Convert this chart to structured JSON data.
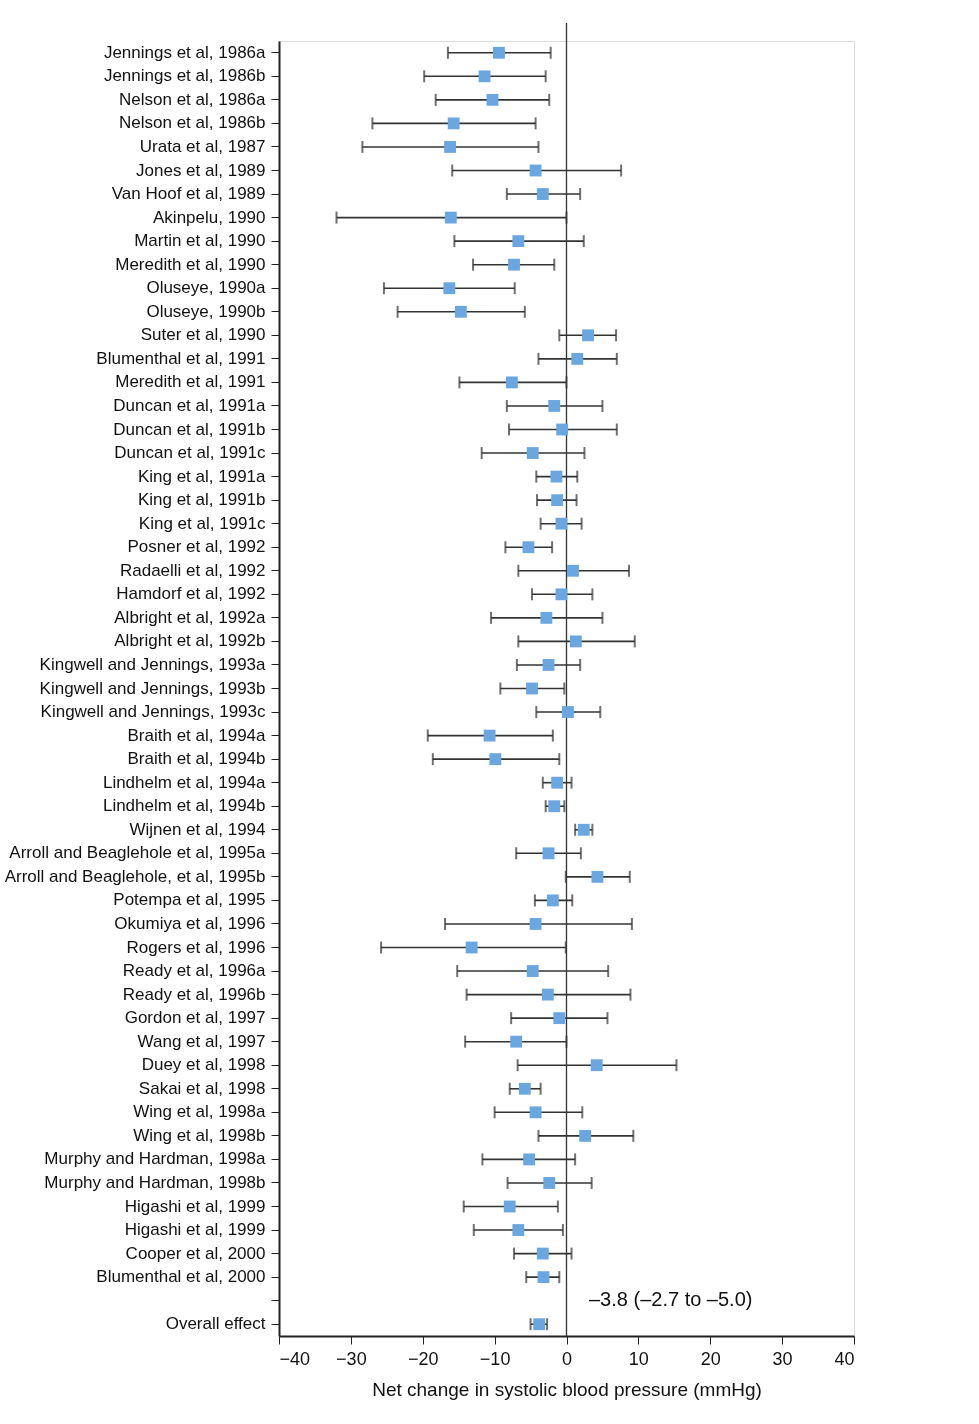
{
  "chart_data": {
    "type": "scatter",
    "orientation": "horizontal",
    "marker": "square",
    "xlabel": "Net change in systolic blood pressure (mmHg)",
    "categories": [
      "Jennings et al, 1986a",
      "Jennings et al, 1986b",
      "Nelson et al, 1986a",
      "Nelson et al, 1986b",
      "Urata et al, 1987",
      "Jones et al, 1989",
      "Van Hoof et al, 1989",
      "Akinpelu, 1990",
      "Martin et al, 1990",
      "Meredith et al, 1990",
      "Oluseye, 1990a",
      "Oluseye, 1990b",
      "Suter et al, 1990",
      "Blumenthal et al, 1991",
      "Meredith et al, 1991",
      "Duncan et al, 1991a",
      "Duncan et al, 1991b",
      "Duncan et al, 1991c",
      "King et al, 1991a",
      "King et al, 1991b",
      "King et al, 1991c",
      "Posner et al, 1992",
      "Radaelli et al, 1992",
      "Hamdorf et al, 1992",
      "Albright et al, 1992a",
      "Albright et al, 1992b",
      "Kingwell and Jennings, 1993a",
      "Kingwell and Jennings, 1993b",
      "Kingwell and Jennings, 1993c",
      "Braith et al, 1994a",
      "Braith et al, 1994b",
      "Lindhelm et al, 1994a",
      "Lindhelm et al, 1994b",
      "Wijnen et al, 1994",
      "Arroll and Beaglehole et al, 1995a",
      "Arroll and Beaglehole, et al, 1995b",
      "Potempa et al, 1995",
      "Okumiya et al, 1996",
      "Rogers et al, 1996",
      "Ready et al, 1996a",
      "Ready et al, 1996b",
      "Gordon et al, 1997",
      "Wang et al, 1997",
      "Duey et al, 1998",
      "Sakai et al, 1998",
      "Wing et al, 1998a",
      "Wing et al, 1998b",
      "Murphy and Hardman, 1998a",
      "Murphy and Hardman, 1998b",
      "Higashi et al, 1999",
      "Higashi et al, 1999",
      "Cooper et al, 2000",
      "Blumenthal et al, 2000",
      null,
      "Overall effect"
    ],
    "values": [
      -9.4,
      -11.4,
      -10.3,
      -15.7,
      -16.2,
      -4.3,
      -3.3,
      -16.1,
      -6.7,
      -7.3,
      -16.3,
      -14.7,
      3.0,
      1.5,
      -7.6,
      -1.7,
      -0.6,
      -4.7,
      -1.4,
      -1.3,
      -0.7,
      -5.3,
      0.9,
      -0.7,
      -2.8,
      1.3,
      -2.5,
      -4.8,
      0.2,
      -10.7,
      -9.9,
      -1.3,
      -1.7,
      2.4,
      -2.5,
      4.3,
      -1.9,
      -4.3,
      -13.2,
      -4.7,
      -2.6,
      -1.0,
      -7.0,
      4.2,
      -5.8,
      -4.3,
      2.6,
      -5.2,
      -2.4,
      -7.9,
      -6.7,
      -3.3,
      -3.2,
      null,
      -3.8
    ],
    "errors": [
      [
        -16.5,
        -2.2
      ],
      [
        -19.8,
        -2.9
      ],
      [
        -18.2,
        -2.4
      ],
      [
        -27.0,
        -4.3
      ],
      [
        -28.4,
        -3.9
      ],
      [
        -15.9,
        7.6
      ],
      [
        -8.3,
        1.9
      ],
      [
        -32.0,
        0
      ],
      [
        -15.6,
        2.4
      ],
      [
        -13.0,
        -1.7
      ],
      [
        -25.4,
        -7.2
      ],
      [
        -23.5,
        -5.8
      ],
      [
        -1.0,
        6.9
      ],
      [
        -3.9,
        7.0
      ],
      [
        -14.9,
        0
      ],
      [
        -8.3,
        5.0
      ],
      [
        -8.0,
        7.0
      ],
      [
        -11.8,
        2.5
      ],
      [
        -4.2,
        1.5
      ],
      [
        -4.1,
        1.4
      ],
      [
        -3.6,
        2.1
      ],
      [
        -8.5,
        -2.0
      ],
      [
        -6.7,
        8.7
      ],
      [
        -4.8,
        3.6
      ],
      [
        -10.5,
        5.0
      ],
      [
        -6.7,
        9.5
      ],
      [
        -6.9,
        1.9
      ],
      [
        -9.2,
        -0.3
      ],
      [
        -4.2,
        4.7
      ],
      [
        -19.3,
        -1.9
      ],
      [
        -18.6,
        -1.0
      ],
      [
        -3.3,
        0.7
      ],
      [
        -2.9,
        -0.3
      ],
      [
        1.2,
        3.6
      ],
      [
        -7.0,
        2.0
      ],
      [
        -0.1,
        8.8
      ],
      [
        -4.4,
        0.8
      ],
      [
        -16.9,
        9.1
      ],
      [
        -25.8,
        -0.1
      ],
      [
        -15.2,
        5.8
      ],
      [
        -13.9,
        8.9
      ],
      [
        -7.7,
        5.7
      ],
      [
        -14.1,
        0
      ],
      [
        -6.8,
        15.3
      ],
      [
        -7.9,
        -3.6
      ],
      [
        -10.0,
        2.2
      ],
      [
        -3.9,
        9.3
      ],
      [
        -11.7,
        1.2
      ],
      [
        -8.2,
        3.5
      ],
      [
        -14.3,
        -1.2
      ],
      [
        -12.9,
        -0.5
      ],
      [
        -7.3,
        0.7
      ],
      [
        -5.6,
        -1.0
      ],
      null,
      [
        -5.0,
        -2.7
      ]
    ],
    "color": "#6aa6e0",
    "xlim": [
      -40,
      40
    ],
    "xticks": [
      -40,
      -30,
      -20,
      -10,
      0,
      10,
      20,
      30,
      40
    ],
    "ref_lines": [
      {
        "axis": "x",
        "value": 0
      }
    ],
    "annotations": [
      "–3.8 (–2.7 to –5.0)"
    ],
    "grid": false
  }
}
